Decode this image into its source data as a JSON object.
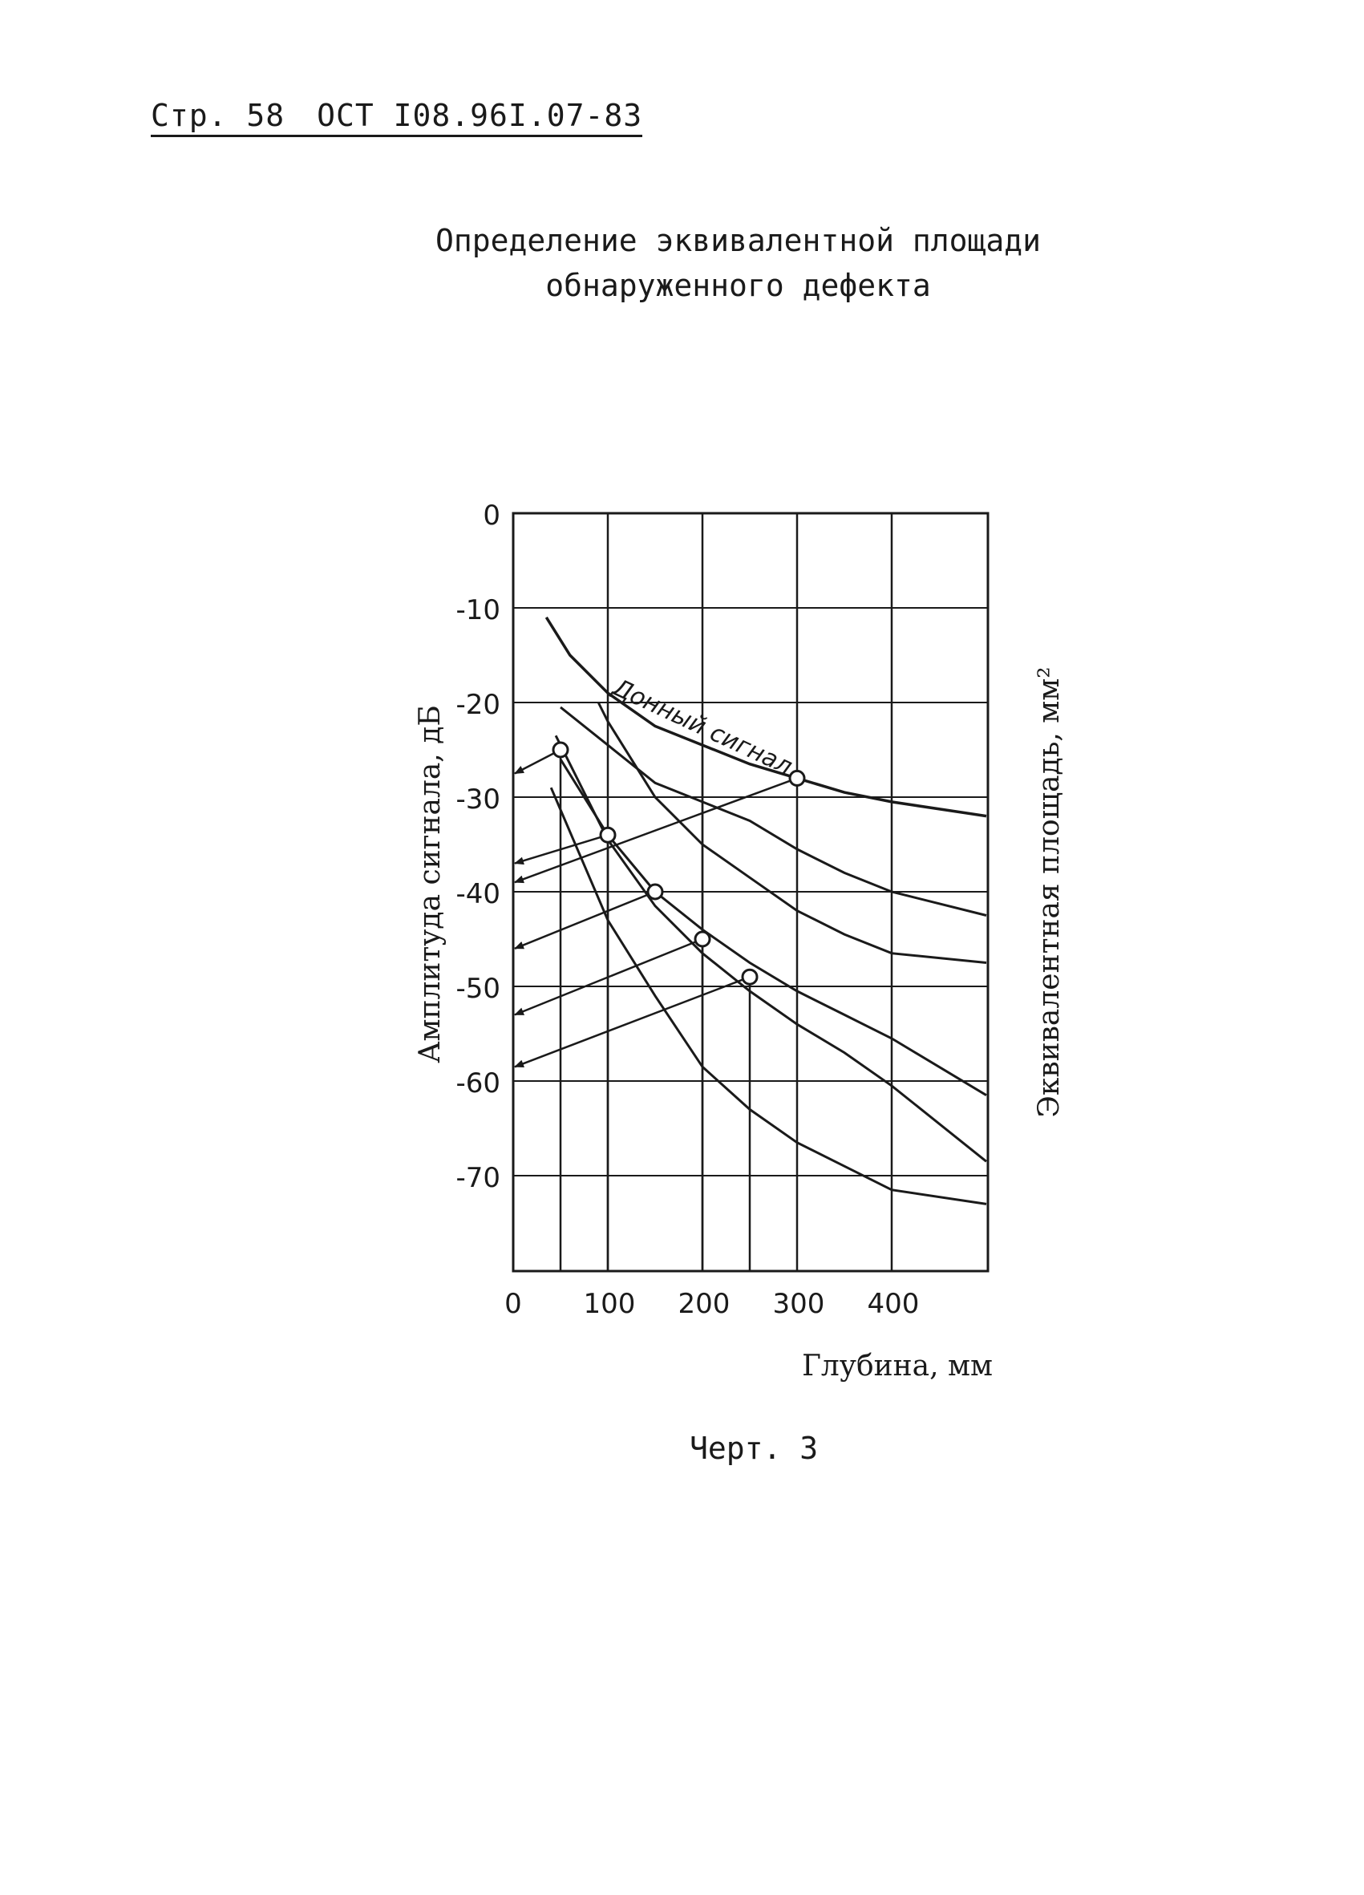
{
  "header": {
    "page_label": "Стр. 58",
    "standard": "ОСТ I08.96I.07-83"
  },
  "title": {
    "line1": "Определение эквивалентной площади",
    "line2": "обнаруженного дефекта"
  },
  "caption": "Черт. 3",
  "chart_data": {
    "type": "line",
    "title": "",
    "xlabel": "Глубина, мм",
    "ylabel": "Амплитуда сигнала, дБ",
    "ylabel_right": "Эквивалентная площадь, мм²",
    "x_ticks": [
      "0",
      "100",
      "200",
      "300",
      "400"
    ],
    "y_ticks": [
      "0",
      "-10",
      "-20",
      "-30",
      "-40",
      "-50",
      "-60",
      "-70"
    ],
    "xlim": [
      0,
      500
    ],
    "ylim": [
      -80,
      0
    ],
    "grid": true,
    "legend": "none",
    "series": [
      {
        "name": "Донный сигнал",
        "x": [
          35,
          60,
          100,
          150,
          200,
          250,
          300,
          350,
          400,
          500
        ],
        "y": [
          -11,
          -15,
          -19,
          -22.5,
          -24.5,
          -26.5,
          -28,
          -29.5,
          -30.5,
          -32
        ]
      },
      {
        "name": "",
        "x": [
          50,
          100,
          150,
          200,
          250,
          300,
          350,
          400,
          500
        ],
        "y": [
          -20.5,
          -24.5,
          -28.5,
          -30.5,
          -32.5,
          -35.5,
          -38,
          -40,
          -42.5
        ]
      },
      {
        "name": "",
        "x": [
          90,
          100,
          150,
          200,
          250,
          300,
          350,
          400,
          500
        ],
        "y": [
          -20,
          -22,
          -30,
          -35,
          -38.5,
          -42,
          -44.5,
          -46.5,
          -47.5
        ]
      },
      {
        "name": "",
        "x": [
          50,
          100,
          150,
          200,
          250,
          300,
          350,
          400,
          500
        ],
        "y": [
          -26,
          -34,
          -40,
          -44,
          -47.5,
          -50.5,
          -53,
          -55.5,
          -61.5
        ]
      },
      {
        "name": "",
        "x": [
          45,
          100,
          150,
          200,
          250,
          300,
          350,
          400,
          500
        ],
        "y": [
          -23.5,
          -34.5,
          -41.5,
          -46.5,
          -50.5,
          -54,
          -57,
          -60.5,
          -68.5
        ]
      },
      {
        "name": "",
        "x": [
          40,
          100,
          150,
          200,
          250,
          300,
          350,
          400,
          500
        ],
        "y": [
          -29,
          -43,
          -51,
          -58.5,
          -63,
          -66.5,
          -69,
          -71.5,
          -73
        ]
      }
    ],
    "points": [
      {
        "x": 50,
        "y": -25
      },
      {
        "x": 100,
        "y": -34
      },
      {
        "x": 150,
        "y": -40
      },
      {
        "x": 200,
        "y": -45
      },
      {
        "x": 250,
        "y": -49
      },
      {
        "x": 300,
        "y": -28
      }
    ],
    "arrows": [
      {
        "from": [
          50,
          -25
        ],
        "to": [
          0,
          -27.5
        ]
      },
      {
        "from": [
          100,
          -34
        ],
        "to": [
          0,
          -37
        ]
      },
      {
        "from": [
          150,
          -40
        ],
        "to": [
          0,
          -46
        ]
      },
      {
        "from": [
          200,
          -45
        ],
        "to": [
          0,
          -53
        ]
      },
      {
        "from": [
          300,
          -28
        ],
        "to": [
          0,
          -39
        ]
      },
      {
        "from": [
          250,
          -49
        ],
        "to": [
          0,
          -58.5
        ]
      }
    ],
    "drop_lines": [
      {
        "x": 50,
        "from": -25,
        "to": -80
      },
      {
        "x": 100,
        "from": -34,
        "to": -80
      },
      {
        "x": 200,
        "from": -45,
        "to": -80
      },
      {
        "x": 250,
        "from": -49,
        "to": -80
      },
      {
        "x": 200,
        "from": -25,
        "to": -45
      }
    ]
  }
}
